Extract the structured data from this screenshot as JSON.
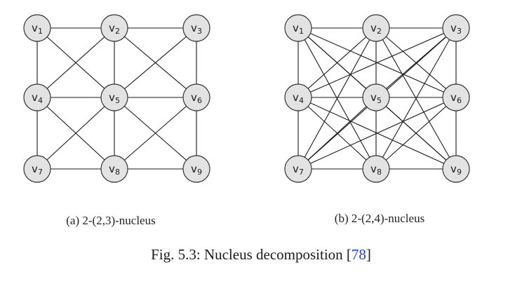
{
  "nodes": [
    {
      "id": "v1",
      "letter": "v",
      "sub": "1"
    },
    {
      "id": "v2",
      "letter": "v",
      "sub": "2"
    },
    {
      "id": "v3",
      "letter": "v",
      "sub": "3"
    },
    {
      "id": "v4",
      "letter": "v",
      "sub": "4"
    },
    {
      "id": "v5",
      "letter": "v",
      "sub": "5"
    },
    {
      "id": "v6",
      "letter": "v",
      "sub": "6"
    },
    {
      "id": "v7",
      "letter": "v",
      "sub": "7"
    },
    {
      "id": "v8",
      "letter": "v",
      "sub": "8"
    },
    {
      "id": "v9",
      "letter": "v",
      "sub": "9"
    }
  ],
  "graphs": [
    {
      "key": "a",
      "caption": "(a) 2-(2,3)-nucleus",
      "edges": [
        [
          "v1",
          "v2"
        ],
        [
          "v2",
          "v3"
        ],
        [
          "v4",
          "v5"
        ],
        [
          "v5",
          "v6"
        ],
        [
          "v7",
          "v8"
        ],
        [
          "v8",
          "v9"
        ],
        [
          "v1",
          "v4"
        ],
        [
          "v4",
          "v7"
        ],
        [
          "v2",
          "v5"
        ],
        [
          "v5",
          "v8"
        ],
        [
          "v3",
          "v6"
        ],
        [
          "v6",
          "v9"
        ],
        [
          "v1",
          "v5"
        ],
        [
          "v5",
          "v9"
        ],
        [
          "v3",
          "v5"
        ],
        [
          "v5",
          "v7"
        ],
        [
          "v2",
          "v4"
        ],
        [
          "v4",
          "v8"
        ],
        [
          "v2",
          "v6"
        ],
        [
          "v6",
          "v8"
        ]
      ]
    },
    {
      "key": "b",
      "caption": "(b) 2-(2,4)-nucleus",
      "edges": [
        [
          "v1",
          "v2"
        ],
        [
          "v2",
          "v3"
        ],
        [
          "v4",
          "v5"
        ],
        [
          "v5",
          "v6"
        ],
        [
          "v7",
          "v8"
        ],
        [
          "v8",
          "v9"
        ],
        [
          "v1",
          "v4"
        ],
        [
          "v4",
          "v7"
        ],
        [
          "v2",
          "v5"
        ],
        [
          "v5",
          "v8"
        ],
        [
          "v3",
          "v6"
        ],
        [
          "v6",
          "v9"
        ],
        [
          "v1",
          "v5"
        ],
        [
          "v5",
          "v9"
        ],
        [
          "v3",
          "v5"
        ],
        [
          "v5",
          "v7"
        ],
        [
          "v2",
          "v4"
        ],
        [
          "v4",
          "v8"
        ],
        [
          "v2",
          "v6"
        ],
        [
          "v6",
          "v8"
        ],
        [
          "v1",
          "v6"
        ],
        [
          "v1",
          "v8"
        ],
        [
          "v1",
          "v9"
        ],
        [
          "v3",
          "v4"
        ],
        [
          "v3",
          "v8"
        ],
        [
          "v3",
          "v7"
        ],
        [
          "v7",
          "v2"
        ],
        [
          "v7",
          "v6"
        ],
        [
          "v9",
          "v2"
        ],
        [
          "v9",
          "v4"
        ],
        [
          "v2",
          "v7"
        ],
        [
          "v2",
          "v9"
        ]
      ]
    }
  ],
  "figure_caption": {
    "prefix": "Fig. 5.3: Nucleus decomposition [",
    "ref": "78",
    "suffix": "]"
  }
}
